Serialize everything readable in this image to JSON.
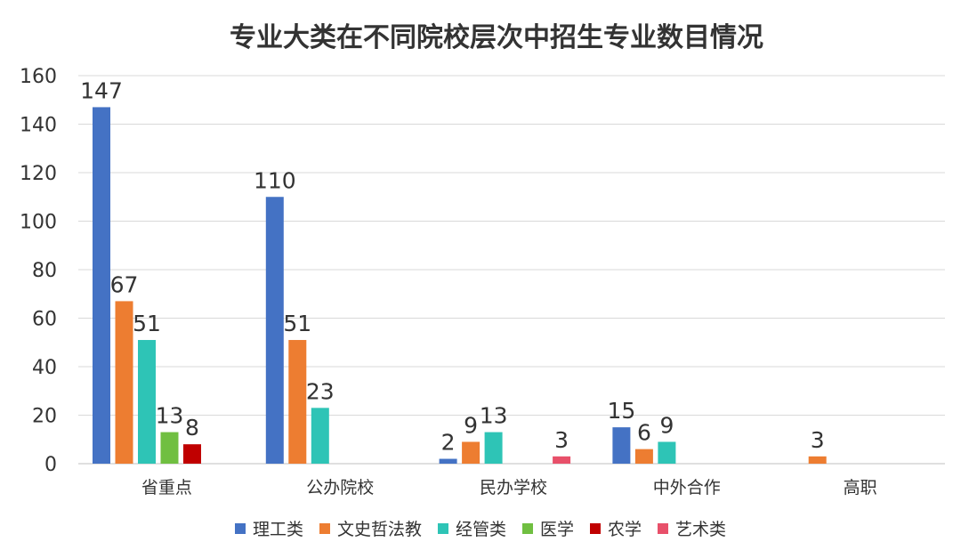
{
  "chart_data": {
    "type": "bar",
    "title": "专业大类在不同院校层次中招生专业数目情况",
    "xlabel": "",
    "ylabel": "",
    "categories": [
      "省重点",
      "公办院校",
      "民办学校",
      "中外合作",
      "高职"
    ],
    "series": [
      {
        "name": "理工类",
        "color": "#4472C4",
        "values": [
          147,
          110,
          2,
          15,
          null
        ]
      },
      {
        "name": "文史哲法教",
        "color": "#ED7D31",
        "values": [
          67,
          51,
          9,
          6,
          3
        ]
      },
      {
        "name": "经管类",
        "color": "#2EC4B6",
        "values": [
          51,
          23,
          13,
          9,
          null
        ]
      },
      {
        "name": "医学",
        "color": "#70BF41",
        "values": [
          13,
          null,
          null,
          null,
          null
        ]
      },
      {
        "name": "农学",
        "color": "#C00000",
        "values": [
          8,
          null,
          null,
          null,
          null
        ]
      },
      {
        "name": "艺术类",
        "color": "#E8506A",
        "values": [
          null,
          null,
          3,
          null,
          null
        ]
      }
    ],
    "ylim": [
      0,
      160
    ],
    "yticks": [
      0,
      20,
      40,
      60,
      80,
      100,
      120,
      140,
      160
    ],
    "grid": true,
    "legend_position": "bottom",
    "data_labels": true
  }
}
